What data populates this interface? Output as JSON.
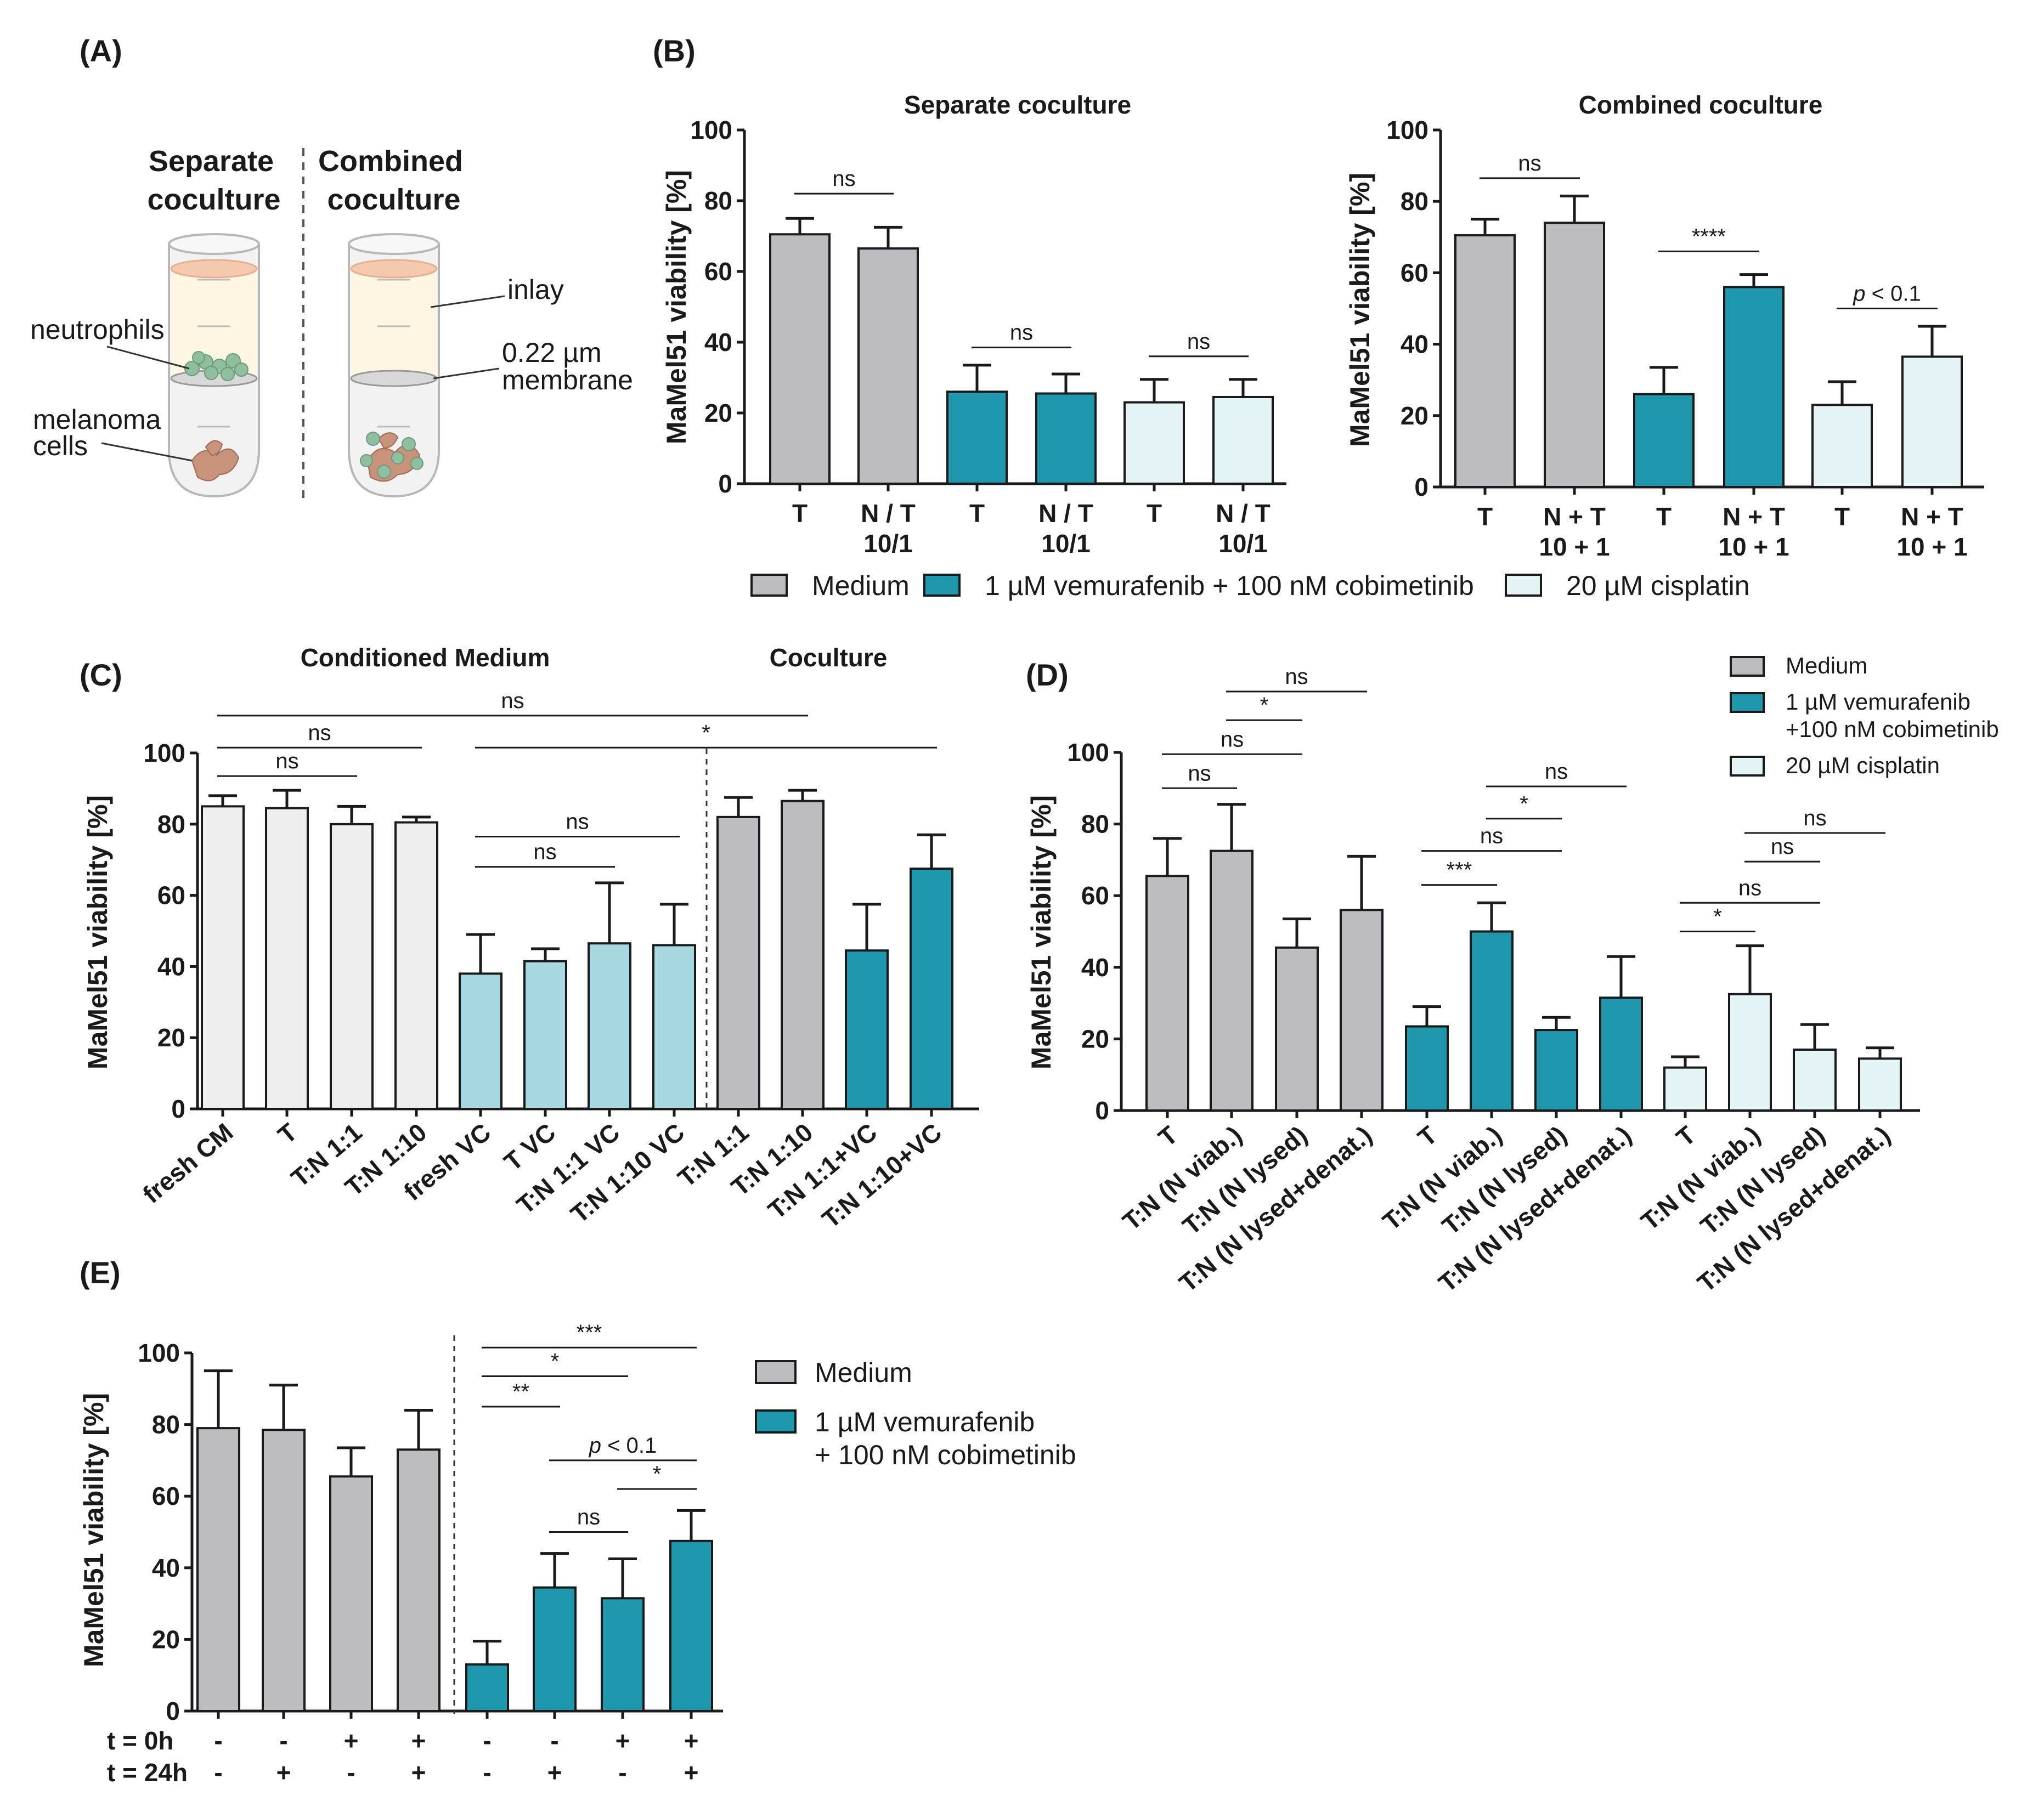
{
  "colors": {
    "medium": "#bdbcc1",
    "vemcob": "#1f97ad",
    "cisplatin": "#e4f3f6",
    "cond_medium": "#eeeeee",
    "vc": "#a7d8e2",
    "neutrophil": "#8fbf9f",
    "melanoma": "#c9927a"
  },
  "panels": {
    "A": {
      "letter": "(A)",
      "left_title": [
        "Separate",
        "coculture"
      ],
      "right_title": [
        "Combined",
        "coculture"
      ],
      "labels": {
        "neutrophils": "neutrophils",
        "melanoma": [
          "melanoma",
          "cells"
        ],
        "inlay": "inlay",
        "membrane": [
          "0.22 µm",
          "membrane"
        ]
      }
    },
    "B": {
      "letter": "(B)"
    },
    "C": {
      "letter": "(C)",
      "group1": "Conditioned Medium",
      "group2": "Coculture"
    },
    "D": {
      "letter": "(D)"
    },
    "E": {
      "letter": "(E)"
    }
  },
  "legend_B": [
    {
      "label": "Medium",
      "color": "#bdbcc1"
    },
    {
      "label": "1 µM vemurafenib + 100 nM cobimetinib",
      "color": "#1f97ad"
    },
    {
      "label": "20 µM cisplatin",
      "color": "#e4f3f6"
    }
  ],
  "legend_D": [
    {
      "label": [
        "Medium"
      ],
      "color": "#bdbcc1"
    },
    {
      "label": [
        "1 µM vemurafenib",
        "+100 nM cobimetinib"
      ],
      "color": "#1f97ad"
    },
    {
      "label": [
        "20 µM cisplatin"
      ],
      "color": "#e4f3f6"
    }
  ],
  "legend_E": [
    {
      "label": [
        "Medium"
      ],
      "color": "#bdbcc1"
    },
    {
      "label": [
        "1 µM vemurafenib",
        "+ 100 nM cobimetinib"
      ],
      "color": "#1f97ad"
    }
  ],
  "chart_data": [
    {
      "id": "B1",
      "type": "bar",
      "title": "Separate coculture",
      "ylabel": "MaMel51 viability [%]",
      "ylim": [
        0,
        100
      ],
      "yticks": [
        0,
        20,
        40,
        60,
        80,
        100
      ],
      "categories": [
        [
          "T"
        ],
        [
          "N / T",
          "10/1"
        ],
        [
          "T"
        ],
        [
          "N / T",
          "10/1"
        ],
        [
          "T"
        ],
        [
          "N / T",
          "10/1"
        ]
      ],
      "values": [
        70.5,
        66.5,
        26,
        25.5,
        23,
        24.5
      ],
      "errors": [
        4.5,
        6,
        7.5,
        5.5,
        6.5,
        5
      ],
      "colors": [
        "medium",
        "medium",
        "vemcob",
        "vemcob",
        "cisplatin",
        "cisplatin"
      ],
      "comparisons": [
        {
          "from": 0,
          "to": 1,
          "y": 82,
          "label": "ns"
        },
        {
          "from": 2,
          "to": 3,
          "y": 38.5,
          "label": "ns"
        },
        {
          "from": 4,
          "to": 5,
          "y": 36,
          "label": "ns"
        }
      ]
    },
    {
      "id": "B2",
      "type": "bar",
      "title": "Combined coculture",
      "ylabel": "MaMel51 viability [%]",
      "ylim": [
        0,
        100
      ],
      "yticks": [
        0,
        20,
        40,
        60,
        80,
        100
      ],
      "categories": [
        [
          "T"
        ],
        [
          "N + T",
          "10 + 1"
        ],
        [
          "T"
        ],
        [
          "N + T",
          "10 + 1"
        ],
        [
          "T"
        ],
        [
          "N + T",
          "10 + 1"
        ]
      ],
      "values": [
        70.5,
        74,
        26,
        56,
        23,
        36.5
      ],
      "errors": [
        4.5,
        7.5,
        7.5,
        3.5,
        6.5,
        8.5
      ],
      "colors": [
        "medium",
        "medium",
        "vemcob",
        "vemcob",
        "cisplatin",
        "cisplatin"
      ],
      "comparisons": [
        {
          "from": 0,
          "to": 1,
          "y": 86.5,
          "label": "ns"
        },
        {
          "from": 2,
          "to": 3,
          "y": 66,
          "label": "****"
        },
        {
          "from": 4,
          "to": 5,
          "y": 50,
          "label": "p < 0.1"
        }
      ]
    },
    {
      "id": "C",
      "type": "bar",
      "title": "",
      "ylabel": "MaMel51 viability [%]",
      "ylim": [
        0,
        100
      ],
      "yticks": [
        0,
        20,
        40,
        60,
        80,
        100
      ],
      "categories": [
        "fresh CM",
        "T",
        "T:N 1:1",
        "T:N 1:10",
        "fresh VC",
        "T VC",
        "T:N 1:1 VC",
        "T:N 1:10 VC",
        "T:N 1:1",
        "T:N 1:10",
        "T:N 1:1+VC",
        "T:N 1:10+VC"
      ],
      "values": [
        85,
        84.5,
        80,
        80.5,
        38,
        41.5,
        46.5,
        46,
        82,
        86.5,
        44.5,
        67.5
      ],
      "errors": [
        3,
        5,
        5,
        1.5,
        11,
        3.5,
        17,
        11.5,
        5.5,
        3,
        13,
        9.5
      ],
      "colors": [
        "cond_medium",
        "cond_medium",
        "cond_medium",
        "cond_medium",
        "vc",
        "vc",
        "vc",
        "vc",
        "medium",
        "medium",
        "vemcob",
        "vemcob"
      ],
      "comparisons": [
        {
          "from": 0,
          "to": 9,
          "y": 110.5,
          "label": "ns"
        },
        {
          "from": 0,
          "to": 3,
          "y": 101.5,
          "label": "ns"
        },
        {
          "from": 0,
          "to": 2,
          "y": 93.5,
          "label": "ns"
        },
        {
          "from": 4,
          "to": 11,
          "y": 101.5,
          "label": "*"
        },
        {
          "from": 4,
          "to": 7,
          "y": 76.5,
          "label": "ns"
        },
        {
          "from": 4,
          "to": 6,
          "y": 68,
          "label": "ns"
        }
      ]
    },
    {
      "id": "D",
      "type": "bar",
      "title": "",
      "ylabel": "MaMel51 viability [%]",
      "ylim": [
        0,
        100
      ],
      "yticks": [
        0,
        20,
        40,
        60,
        80,
        100
      ],
      "categories": [
        "T",
        "T:N (N viab.)",
        "T:N (N lysed)",
        "T:N (N lysed+denat.)",
        "T",
        "T:N (N viab.)",
        "T:N (N lysed)",
        "T:N (N lysed+denat.)",
        "T",
        "T:N (N viab.)",
        "T:N (N lysed)",
        "T:N (N lysed+denat.)"
      ],
      "values": [
        65.5,
        72.5,
        45.5,
        56,
        23.5,
        50,
        22.5,
        31.5,
        12,
        32.5,
        17,
        14.5
      ],
      "errors": [
        10.5,
        13,
        8,
        15,
        5.5,
        8,
        3.5,
        11.5,
        3,
        13.5,
        7,
        3
      ],
      "colors": [
        "medium",
        "medium",
        "medium",
        "medium",
        "vemcob",
        "vemcob",
        "vemcob",
        "vemcob",
        "cisplatin",
        "cisplatin",
        "cisplatin",
        "cisplatin"
      ],
      "comparisons": [
        {
          "from": 1,
          "to": 3,
          "y": 117,
          "label": "ns"
        },
        {
          "from": 1,
          "to": 2,
          "y": 109,
          "label": "*"
        },
        {
          "from": 0,
          "to": 2,
          "y": 99.5,
          "label": "ns"
        },
        {
          "from": 0,
          "to": 1,
          "y": 90,
          "label": "ns"
        },
        {
          "from": 5,
          "to": 7,
          "y": 90.5,
          "label": "ns"
        },
        {
          "from": 5,
          "to": 6,
          "y": 81.5,
          "label": "*"
        },
        {
          "from": 4,
          "to": 6,
          "y": 72.5,
          "label": "ns"
        },
        {
          "from": 4,
          "to": 5,
          "y": 63,
          "label": "***"
        },
        {
          "from": 9,
          "to": 11,
          "y": 77.5,
          "label": "ns"
        },
        {
          "from": 9,
          "to": 10,
          "y": 69.5,
          "label": "ns"
        },
        {
          "from": 8,
          "to": 10,
          "y": 58,
          "label": "ns"
        },
        {
          "from": 8,
          "to": 9,
          "y": 50,
          "label": "*"
        }
      ]
    },
    {
      "id": "E",
      "type": "bar",
      "title": "",
      "ylabel": "MaMel51 viability [%]",
      "ylim": [
        0,
        100
      ],
      "yticks": [
        0,
        20,
        40,
        60,
        80,
        100
      ],
      "categories": [
        "",
        "",
        "",
        "",
        "",
        "",
        "",
        ""
      ],
      "values": [
        79,
        78.5,
        65.5,
        73,
        13,
        34.5,
        31.5,
        47.5
      ],
      "errors": [
        16,
        12.5,
        8,
        11,
        6.5,
        9.5,
        11,
        8.5
      ],
      "colors": [
        "medium",
        "medium",
        "medium",
        "medium",
        "vemcob",
        "vemcob",
        "vemcob",
        "vemcob"
      ],
      "conditions": [
        {
          "label": "t = 0h",
          "marks": [
            "-",
            "-",
            "+",
            "+",
            "-",
            "-",
            "+",
            "+"
          ]
        },
        {
          "label": "t = 24h",
          "marks": [
            "-",
            "+",
            "-",
            "+",
            "-",
            "+",
            "-",
            "+"
          ]
        }
      ],
      "comparisons": [
        {
          "from": 4,
          "to": 7,
          "y": 101.5,
          "label": "***"
        },
        {
          "from": 4,
          "to": 6,
          "y": 93.5,
          "label": "*"
        },
        {
          "from": 4,
          "to": 5,
          "y": 85,
          "label": "**"
        },
        {
          "from": 5,
          "to": 7,
          "y": 70,
          "label": "p < 0.1"
        },
        {
          "from": 6,
          "to": 7,
          "y": 62,
          "label": "*"
        },
        {
          "from": 5,
          "to": 6,
          "y": 50,
          "label": "ns"
        }
      ]
    }
  ]
}
